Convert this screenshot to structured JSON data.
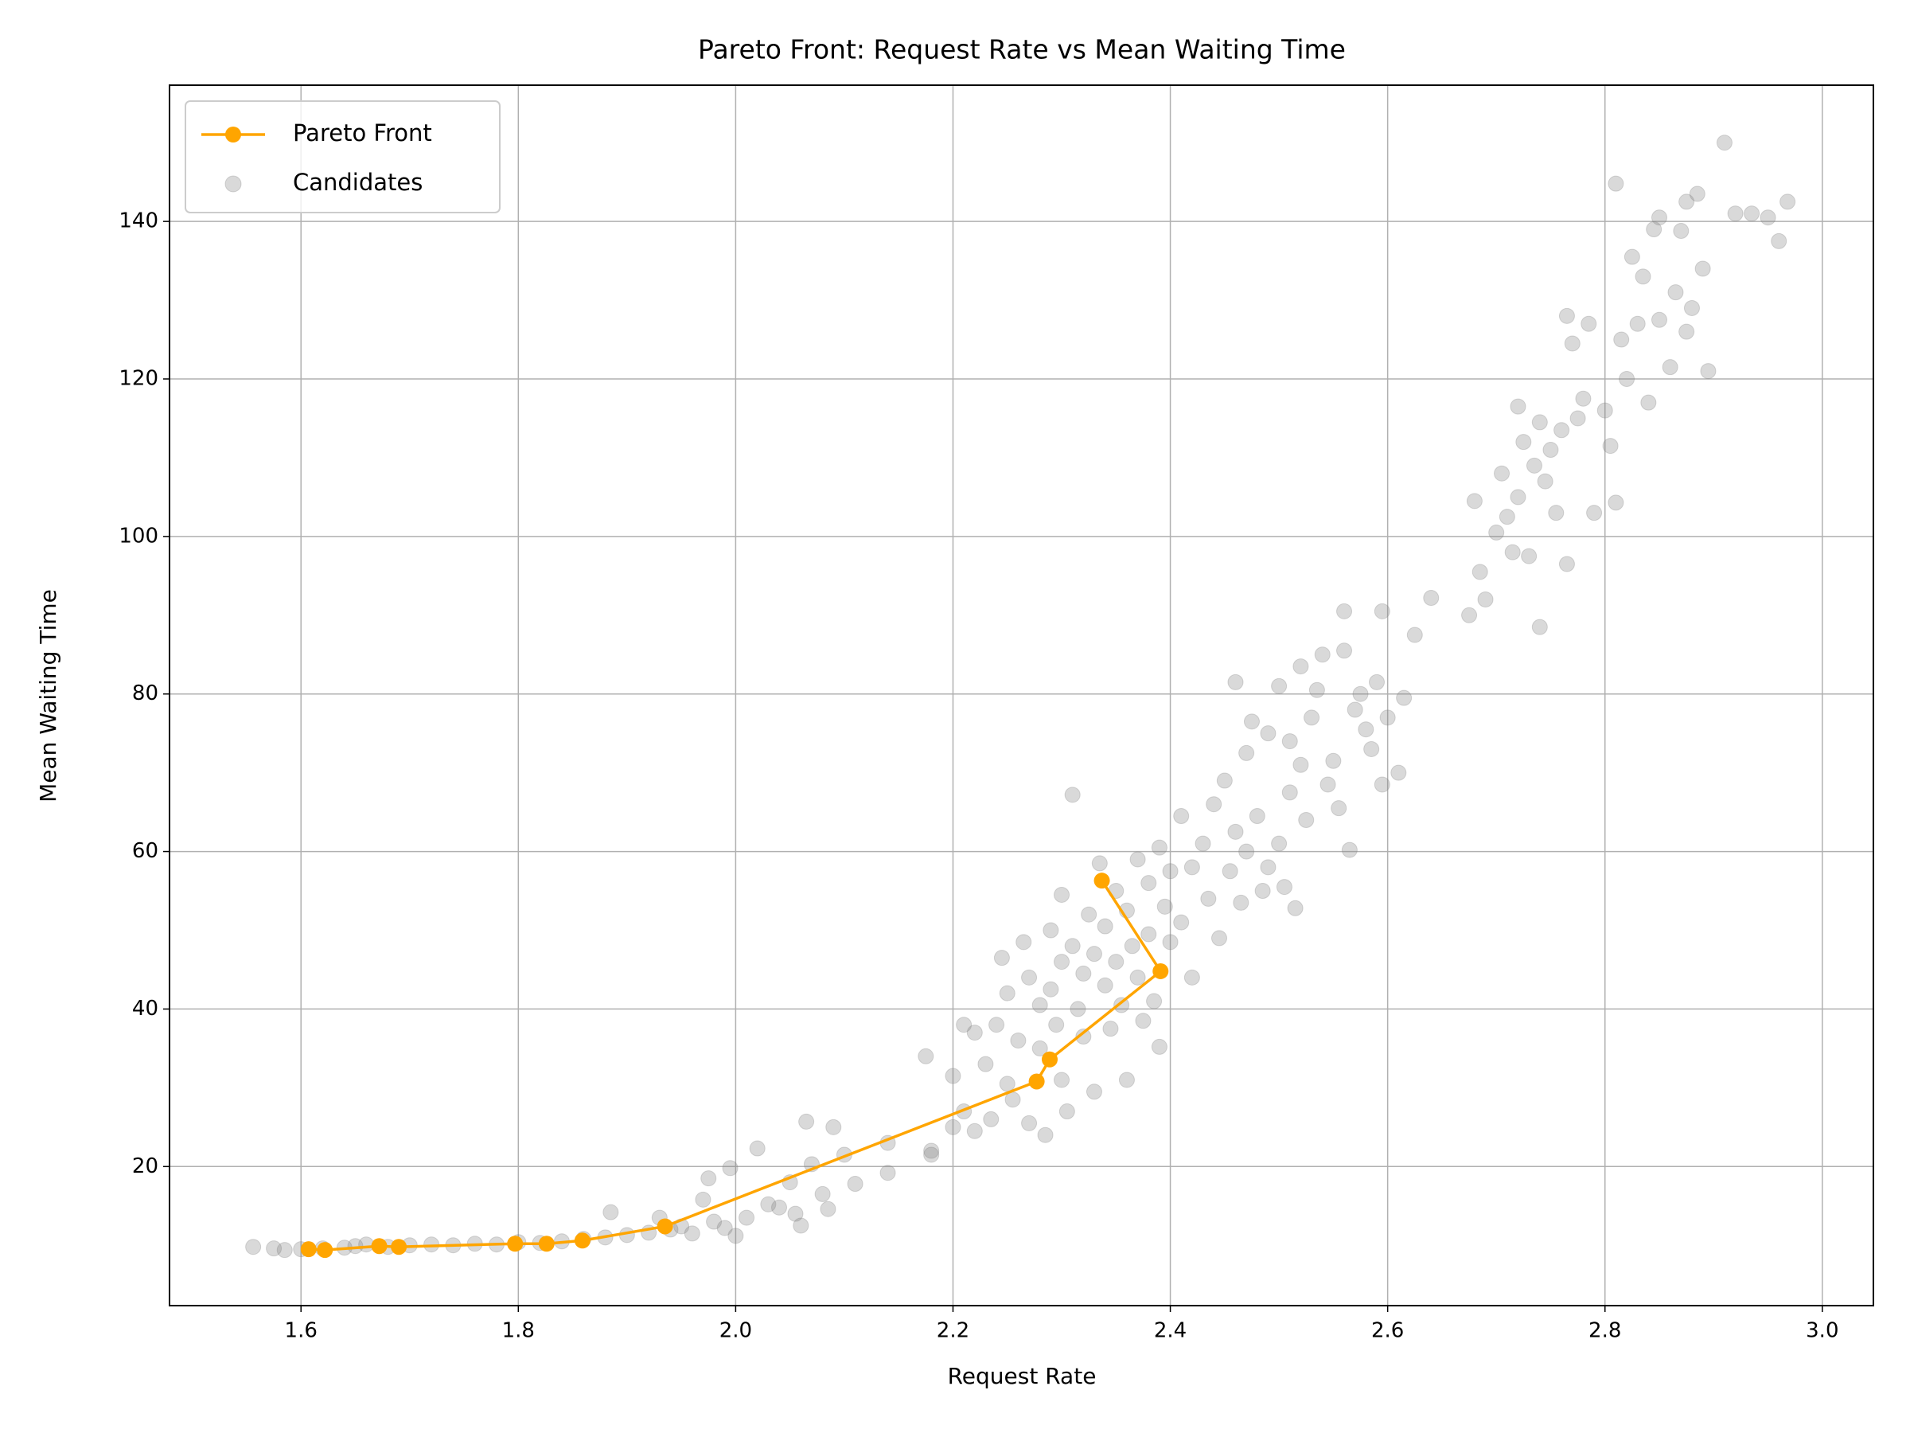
{
  "chart_data": {
    "type": "scatter",
    "title": "Pareto Front: Request Rate vs Mean Waiting Time",
    "x_label": "Request Rate",
    "y_label": "Mean Waiting Time",
    "xlim": [
      1.479,
      3.047
    ],
    "ylim": [
      2.34,
      157.3
    ],
    "xticks": [
      1.6,
      1.8,
      {
        "value": 2,
        "label": "2.0"
      },
      2.2,
      2.4,
      2.6,
      2.8,
      {
        "value": 3,
        "label": "3.0"
      }
    ],
    "yticks": [
      20,
      40,
      60,
      80,
      100,
      120,
      140
    ],
    "grid": true,
    "legend": "upper left",
    "series": [
      {
        "name": "Pareto Front",
        "type": "line",
        "color": "#FFA500",
        "x": [
          1.607,
          1.622,
          1.672,
          1.69,
          1.797,
          1.826,
          1.859,
          1.935,
          2.277,
          2.289,
          2.391,
          2.337
        ],
        "y": [
          9.5,
          9.4,
          9.9,
          9.8,
          10.2,
          10.2,
          10.6,
          12.4,
          30.8,
          33.6,
          44.8,
          56.3
        ]
      },
      {
        "name": "Candidates",
        "type": "scatter",
        "color": "#808080",
        "x": [
          1.556,
          1.575,
          1.585,
          1.6,
          1.62,
          1.64,
          1.65,
          1.66,
          1.68,
          1.7,
          1.72,
          1.74,
          1.76,
          1.78,
          1.8,
          1.82,
          1.84,
          1.86,
          1.88,
          1.885,
          1.9,
          1.92,
          1.93,
          1.94,
          1.95,
          1.96,
          1.97,
          1.975,
          1.98,
          1.99,
          1.995,
          2.0,
          2.01,
          2.02,
          2.03,
          2.04,
          2.05,
          2.055,
          2.06,
          2.065,
          2.07,
          2.08,
          2.085,
          2.09,
          2.1,
          2.11,
          2.14,
          2.14,
          2.175,
          2.18,
          2.18,
          2.2,
          2.2,
          2.21,
          2.21,
          2.22,
          2.22,
          2.23,
          2.235,
          2.24,
          2.245,
          2.25,
          2.25,
          2.255,
          2.26,
          2.265,
          2.27,
          2.27,
          2.28,
          2.28,
          2.285,
          2.29,
          2.29,
          2.295,
          2.3,
          2.3,
          2.3,
          2.305,
          2.31,
          2.31,
          2.315,
          2.32,
          2.32,
          2.325,
          2.33,
          2.33,
          2.335,
          2.34,
          2.34,
          2.345,
          2.35,
          2.35,
          2.355,
          2.36,
          2.36,
          2.365,
          2.37,
          2.37,
          2.375,
          2.38,
          2.38,
          2.385,
          2.39,
          2.39,
          2.395,
          2.4,
          2.4,
          2.41,
          2.41,
          2.42,
          2.42,
          2.43,
          2.435,
          2.44,
          2.445,
          2.45,
          2.455,
          2.46,
          2.46,
          2.465,
          2.47,
          2.47,
          2.475,
          2.48,
          2.485,
          2.49,
          2.49,
          2.5,
          2.5,
          2.505,
          2.51,
          2.51,
          2.515,
          2.52,
          2.52,
          2.525,
          2.53,
          2.535,
          2.54,
          2.545,
          2.55,
          2.555,
          2.56,
          2.56,
          2.565,
          2.57,
          2.575,
          2.58,
          2.585,
          2.59,
          2.595,
          2.595,
          2.6,
          2.61,
          2.615,
          2.625,
          2.64,
          2.675,
          2.68,
          2.685,
          2.69,
          2.7,
          2.705,
          2.71,
          2.715,
          2.72,
          2.72,
          2.725,
          2.73,
          2.735,
          2.74,
          2.74,
          2.745,
          2.75,
          2.755,
          2.76,
          2.765,
          2.765,
          2.77,
          2.775,
          2.78,
          2.785,
          2.79,
          2.8,
          2.805,
          2.81,
          2.81,
          2.815,
          2.82,
          2.825,
          2.83,
          2.835,
          2.84,
          2.845,
          2.85,
          2.85,
          2.86,
          2.865,
          2.87,
          2.875,
          2.875,
          2.88,
          2.885,
          2.89,
          2.895,
          2.91,
          2.92,
          2.935,
          2.95,
          2.96,
          2.968
        ],
        "y": [
          9.8,
          9.6,
          9.4,
          9.5,
          9.6,
          9.7,
          9.9,
          10.1,
          9.8,
          10.0,
          10.1,
          10.0,
          10.2,
          10.1,
          10.4,
          10.3,
          10.5,
          10.8,
          11.0,
          14.2,
          11.3,
          11.6,
          13.5,
          12.0,
          12.4,
          11.5,
          15.8,
          18.5,
          13.0,
          12.2,
          19.8,
          11.2,
          13.5,
          22.3,
          15.2,
          14.8,
          18.0,
          14.0,
          12.5,
          25.7,
          20.3,
          16.5,
          14.6,
          25.0,
          21.5,
          17.8,
          23.0,
          19.2,
          34.0,
          22.0,
          21.5,
          31.5,
          25.0,
          38.0,
          27.0,
          37.0,
          24.5,
          33.0,
          26.0,
          38.0,
          46.5,
          30.5,
          42.0,
          28.5,
          36.0,
          48.5,
          44.0,
          25.5,
          40.5,
          35.0,
          24.0,
          50.0,
          42.5,
          38.0,
          54.5,
          46.0,
          31.0,
          27.0,
          67.2,
          48.0,
          40.0,
          44.5,
          36.5,
          52.0,
          47.0,
          29.5,
          58.5,
          43.0,
          50.5,
          37.5,
          55.0,
          46.0,
          40.5,
          52.5,
          31.0,
          48.0,
          59.0,
          44.0,
          38.5,
          56.0,
          49.5,
          41.0,
          60.5,
          35.2,
          53.0,
          48.5,
          57.5,
          64.5,
          51.0,
          44.0,
          58.0,
          61.0,
          54.0,
          66.0,
          49.0,
          69.0,
          57.5,
          81.5,
          62.5,
          53.5,
          72.5,
          60.0,
          76.5,
          64.5,
          55.0,
          58.0,
          75.0,
          81.0,
          61.0,
          55.5,
          67.5,
          74.0,
          52.8,
          83.5,
          71.0,
          64.0,
          77.0,
          80.5,
          85.0,
          68.5,
          71.5,
          65.5,
          85.5,
          90.5,
          60.2,
          78.0,
          80.0,
          75.5,
          73.0,
          81.5,
          90.5,
          68.5,
          77.0,
          70.0,
          79.5,
          87.5,
          92.2,
          90.0,
          104.5,
          95.5,
          92.0,
          100.5,
          108.0,
          102.5,
          98.0,
          116.5,
          105.0,
          112.0,
          97.5,
          109.0,
          114.5,
          88.5,
          107.0,
          111.0,
          103.0,
          113.5,
          96.5,
          128.0,
          124.5,
          115.0,
          117.5,
          127.0,
          103.0,
          116.0,
          111.5,
          104.3,
          144.8,
          125.0,
          120.0,
          135.5,
          127.0,
          133.0,
          117.0,
          139.0,
          140.5,
          127.5,
          121.5,
          131.0,
          138.8,
          126.0,
          142.5,
          129.0,
          143.5,
          134.0,
          121.0,
          150.0,
          141.0,
          141.0,
          140.5,
          137.5,
          142.5
        ]
      }
    ]
  }
}
